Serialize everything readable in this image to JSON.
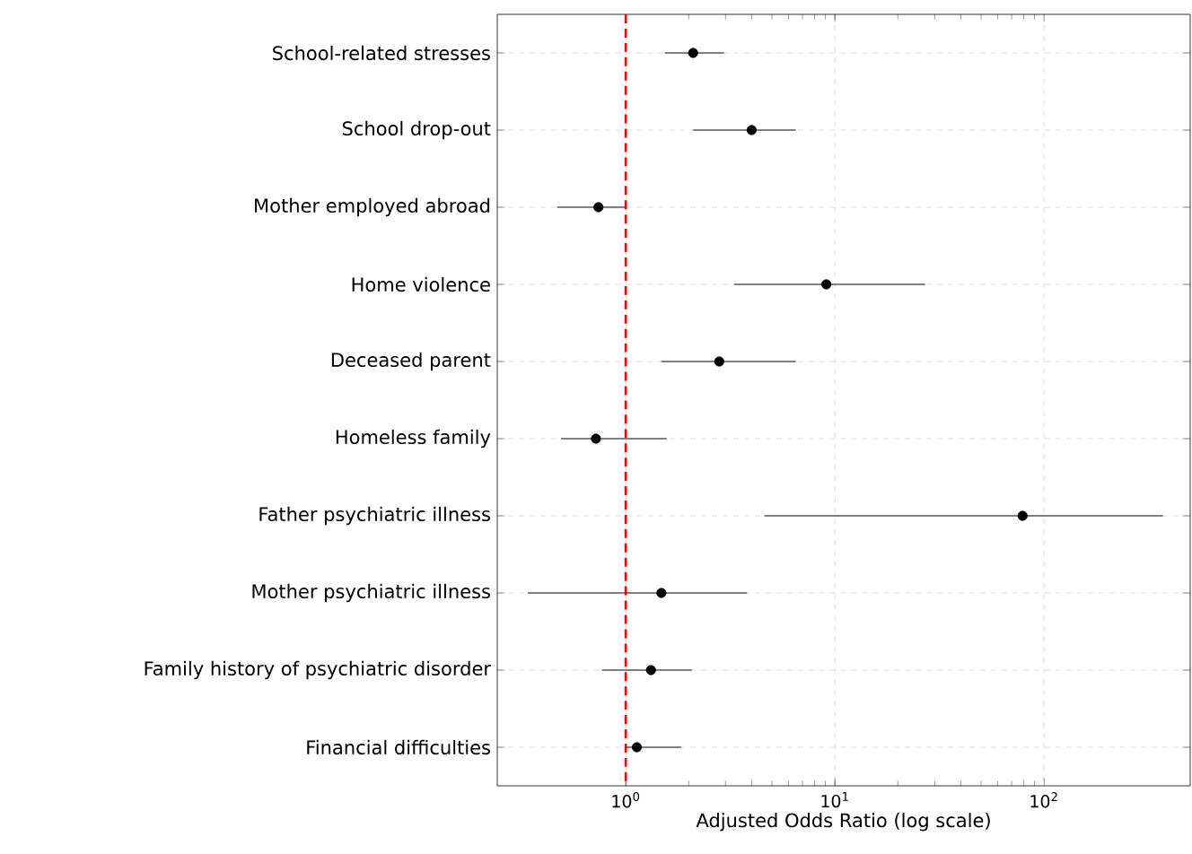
{
  "chart_data": {
    "type": "scatter",
    "orientation": "horizontal",
    "categories": [
      "School-related stresses",
      "School drop-out",
      "Mother employed abroad",
      "Home violence",
      "Deceased parent",
      "Homeless family",
      "Father psychiatric illness",
      "Mother psychiatric illness",
      "Family history of psychiatric disorder",
      "Financial difficulties"
    ],
    "values": [
      2.1,
      4.0,
      0.74,
      9.1,
      2.8,
      0.72,
      79,
      1.48,
      1.32,
      1.13
    ],
    "errors": [
      [
        1.54,
        2.95
      ],
      [
        2.1,
        6.5
      ],
      [
        0.47,
        1.0
      ],
      [
        3.3,
        27
      ],
      [
        1.48,
        6.5
      ],
      [
        0.49,
        1.57
      ],
      [
        4.6,
        370
      ],
      [
        0.34,
        3.8
      ],
      [
        0.77,
        2.07
      ],
      [
        1.0,
        1.84
      ]
    ],
    "color": "#000000",
    "xlabel": "Adjusted Odds Ratio (log scale)",
    "log": "x",
    "xlim": [
      0.243,
      500
    ],
    "xticks": [
      {
        "value": 1,
        "label": "10$^{0}$"
      },
      {
        "value": 10,
        "label": "10$^{1}$"
      },
      {
        "value": 100,
        "label": "10$^{2}$"
      }
    ],
    "ref_lines": [
      {
        "axis": "x",
        "value": 1,
        "color": "#ff0000",
        "line_style": "dashed"
      }
    ],
    "grid": true,
    "marker": "circle"
  }
}
